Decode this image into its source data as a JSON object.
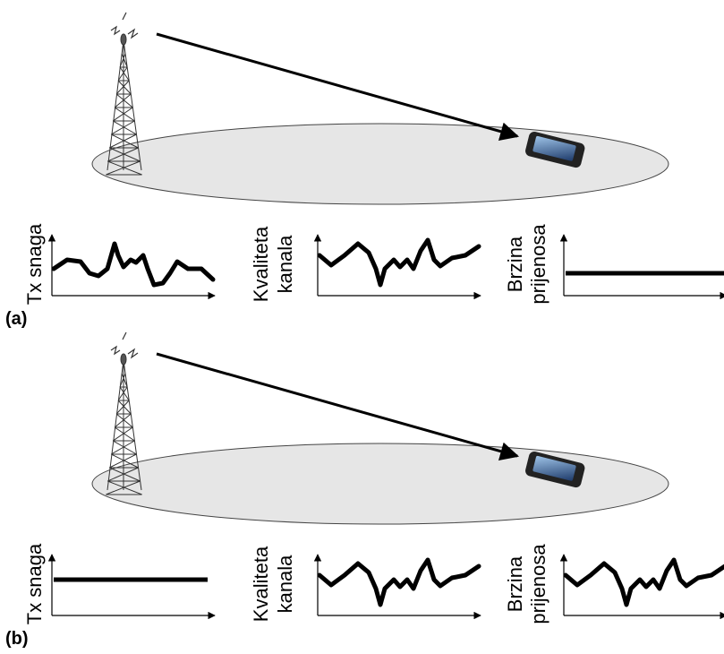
{
  "panels": [
    {
      "label": "(a)",
      "plots": [
        {
          "label": [
            "Tx snaga"
          ]
        },
        {
          "label": [
            "Kvaliteta",
            "kanala"
          ]
        },
        {
          "label": [
            "Brzina",
            "prijenosa"
          ]
        }
      ]
    },
    {
      "label": "(b)",
      "plots": [
        {
          "label": [
            "Tx snaga"
          ]
        },
        {
          "label": [
            "Kvaliteta",
            "kanala"
          ]
        },
        {
          "label": [
            "Brzina",
            "prijenosa"
          ]
        }
      ]
    }
  ]
}
